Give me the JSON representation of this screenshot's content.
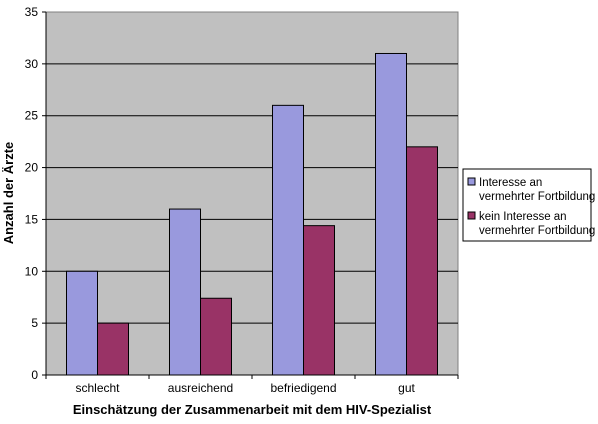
{
  "chart_data": {
    "type": "bar",
    "title": "",
    "xlabel": "Einschätzung der Zusammenarbeit mit dem HIV-Spezialist",
    "ylabel": "Anzahl der Ärzte",
    "categories": [
      "schlecht",
      "ausreichend",
      "befriedigend",
      "gut"
    ],
    "series": [
      {
        "name": "Interesse an vermehrter Fortbildung",
        "name_lines": [
          "Interesse an",
          "vermehrter Fortbildung"
        ],
        "values": [
          10,
          16,
          26,
          31
        ],
        "color": "#9999dd"
      },
      {
        "name": "kein Interesse an vermehrter Fortbildung",
        "name_lines": [
          "kein Interesse an",
          "vermehrter Fortbildung"
        ],
        "values": [
          5,
          7.4,
          14.4,
          22
        ],
        "color": "#993366"
      }
    ],
    "ylim": [
      0,
      35
    ],
    "yticks": [
      "0",
      "5",
      "10",
      "15",
      "20",
      "25",
      "30",
      "35"
    ],
    "grid": true,
    "plot_background": "#c0c0c0",
    "legend_position": "right"
  }
}
